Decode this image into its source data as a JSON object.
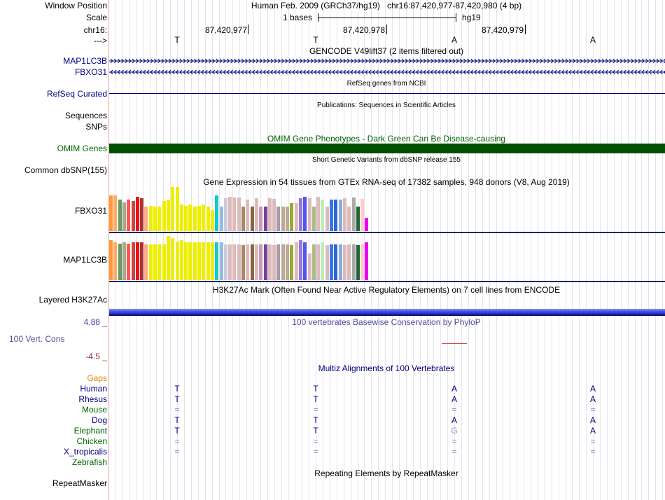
{
  "header": {
    "window_position_label": "Window Position",
    "window_position": "Human Feb. 2009 (GRCh37/hg19)   chr16:87,420,977-87,420,980 (4 bp)",
    "scale_label": "Scale",
    "scale_value": "1 bases",
    "scale_assembly": "hg19",
    "chrom_label": "chr16:",
    "positions": [
      "87,420,977",
      "87,420,978",
      "87,420,979"
    ],
    "strand_label": "--->",
    "ref_bases": [
      "T",
      "T",
      "A",
      "A"
    ]
  },
  "tracks": {
    "gencode_title": "GENCODE V49lift37 (2 items filtered out)",
    "gene1": "MAP1LC3B",
    "gene2": "FBXO31",
    "refseq_title": "RefSeq genes from NCBI",
    "refseq_label": "RefSeq Curated",
    "pubs_title": "Publications: Sequences in Scientific Articles",
    "pubs_label": "Sequences",
    "snps_label": "SNPs",
    "omim_title": "OMIM Gene Phenotypes - Dark Green Can Be Disease-causing",
    "omim_label": "OMIM Genes",
    "dbsnp_title": "Short Genetic Variants from dbSNP release 155",
    "dbsnp_label": "Common dbSNP(155)",
    "gtex_title": "Gene Expression in 54 tissues from GTEx RNA-seq of 17382 samples, 948 donors (V8, Aug 2019)",
    "gtex_gene1": "FBXO31",
    "gtex_gene2": "MAP1LC3B",
    "h3k27_title": "H3K27Ac Mark (Often Found Near Active Regulatory Elements) on 7 cell lines from ENCODE",
    "h3k27_label": "Layered H3K27Ac",
    "cons_title": "100 vertebrates Basewise Conservation by PhyloP",
    "cons_label": "100 Vert. Cons",
    "cons_max": "4.88 _",
    "cons_min": "-4.5 _",
    "multiz_title": "Multiz Alignments of 100 Vertebrates",
    "gaps_label": "Gaps",
    "repeat_title": "Repeating Elements by RepeatMasker",
    "repeat_label": "RepeatMasker"
  },
  "alignment": [
    {
      "species": "Human",
      "color": "#000080",
      "bases": [
        "T",
        "T",
        "A",
        "A"
      ]
    },
    {
      "species": "Rhesus",
      "color": "#000080",
      "bases": [
        "T",
        "T",
        "A",
        "A"
      ]
    },
    {
      "species": "Mouse",
      "color": "#006400",
      "bases": [
        "=",
        "=",
        "=",
        "="
      ]
    },
    {
      "species": "Dog",
      "color": "#000080",
      "bases": [
        "T",
        "T",
        "A",
        "A"
      ]
    },
    {
      "species": "Elephant",
      "color": "#006400",
      "bases": [
        "T",
        "T",
        "G",
        "A"
      ]
    },
    {
      "species": "Chicken",
      "color": "#006400",
      "bases": [
        "=",
        "=",
        "=",
        "="
      ]
    },
    {
      "species": "X_tropicalis",
      "color": "#000080",
      "bases": [
        "=",
        "=",
        "=",
        "="
      ]
    },
    {
      "species": "Zebrafish",
      "color": "#006400",
      "bases": [
        "",
        "",
        "",
        ""
      ]
    }
  ],
  "colors": {
    "omim": "#005000",
    "label_blue": "#000080",
    "omim_label": "#006400",
    "gaps": "#e08a00",
    "cons_title": "#4c4ca0",
    "cons_max": "#4c4ca0",
    "cons_min": "#a03030",
    "h3k27": "#3c4ce8"
  },
  "gtex": {
    "colors": [
      "#ff9933",
      "#ffaa66",
      "#669966",
      "#aaaa88",
      "#ff5555",
      "#cc4444",
      "#ee1111",
      "#aa3333",
      "#ffaa88",
      "#eeee00",
      "#eeee00",
      "#eeee00",
      "#eeee00",
      "#eeee00",
      "#eeee00",
      "#eeee00",
      "#eeee00",
      "#eeee00",
      "#eeee00",
      "#eeee00",
      "#eeee00",
      "#eeee00",
      "#eeee00",
      "#eeee00",
      "#11cccc",
      "#99bbdd",
      "#ccccdd",
      "#ddbbbb",
      "#ddbbbb",
      "#ddbbbb",
      "#aa8866",
      "#ddbbbb",
      "#886644",
      "#ddbbbb",
      "#cc99bb",
      "#774499",
      "#ddbbbb",
      "#ddbbbb",
      "#aa99aa",
      "#bbaa99",
      "#bbaa99",
      "#99aa33",
      "#ddbbbb",
      "#9977dd",
      "#5555ee",
      "#ddbbbb",
      "#aabb88",
      "#ddbbbb",
      "#bbeebb",
      "#ddbbbb",
      "#3377ee",
      "#3366cc",
      "#88aadd",
      "#ddbbbb",
      "#ddbbbb",
      "#aaaaaa",
      "#226633",
      "#ffcccc",
      "#ee00ee"
    ],
    "fbxo31": [
      0.81,
      0.81,
      0.71,
      0.65,
      0.71,
      0.69,
      0.77,
      0.75,
      0.55,
      0.57,
      0.56,
      0.56,
      0.68,
      0.71,
      1.0,
      1.0,
      0.6,
      0.57,
      0.6,
      0.55,
      0.57,
      0.6,
      0.56,
      0.47,
      0.81,
      0.56,
      0.75,
      0.77,
      0.76,
      0.76,
      0.56,
      0.71,
      0.56,
      0.75,
      0.55,
      0.55,
      0.75,
      0.73,
      0.56,
      0.55,
      0.55,
      0.63,
      0.63,
      0.74,
      0.77,
      0.74,
      0.56,
      0.78,
      0.72,
      0.56,
      0.72,
      0.71,
      0.71,
      0.75,
      0.56,
      0.76,
      0.55,
      0.73,
      0.3
    ],
    "map1lc3b": [
      0.91,
      0.86,
      0.83,
      0.86,
      0.83,
      0.86,
      0.85,
      0.85,
      0.81,
      0.81,
      0.81,
      0.81,
      0.81,
      1.0,
      0.96,
      0.88,
      0.91,
      0.85,
      0.85,
      0.85,
      0.85,
      0.85,
      0.86,
      0.85,
      0.85,
      0.86,
      0.81,
      0.81,
      0.81,
      0.81,
      0.79,
      0.81,
      0.81,
      0.81,
      0.81,
      0.81,
      0.81,
      0.79,
      0.81,
      0.81,
      0.81,
      0.79,
      0.85,
      0.91,
      0.86,
      0.6,
      0.81,
      0.81,
      0.85,
      0.79,
      0.81,
      0.81,
      0.81,
      0.79,
      0.81,
      0.81,
      0.79,
      0.81,
      0.86
    ]
  }
}
